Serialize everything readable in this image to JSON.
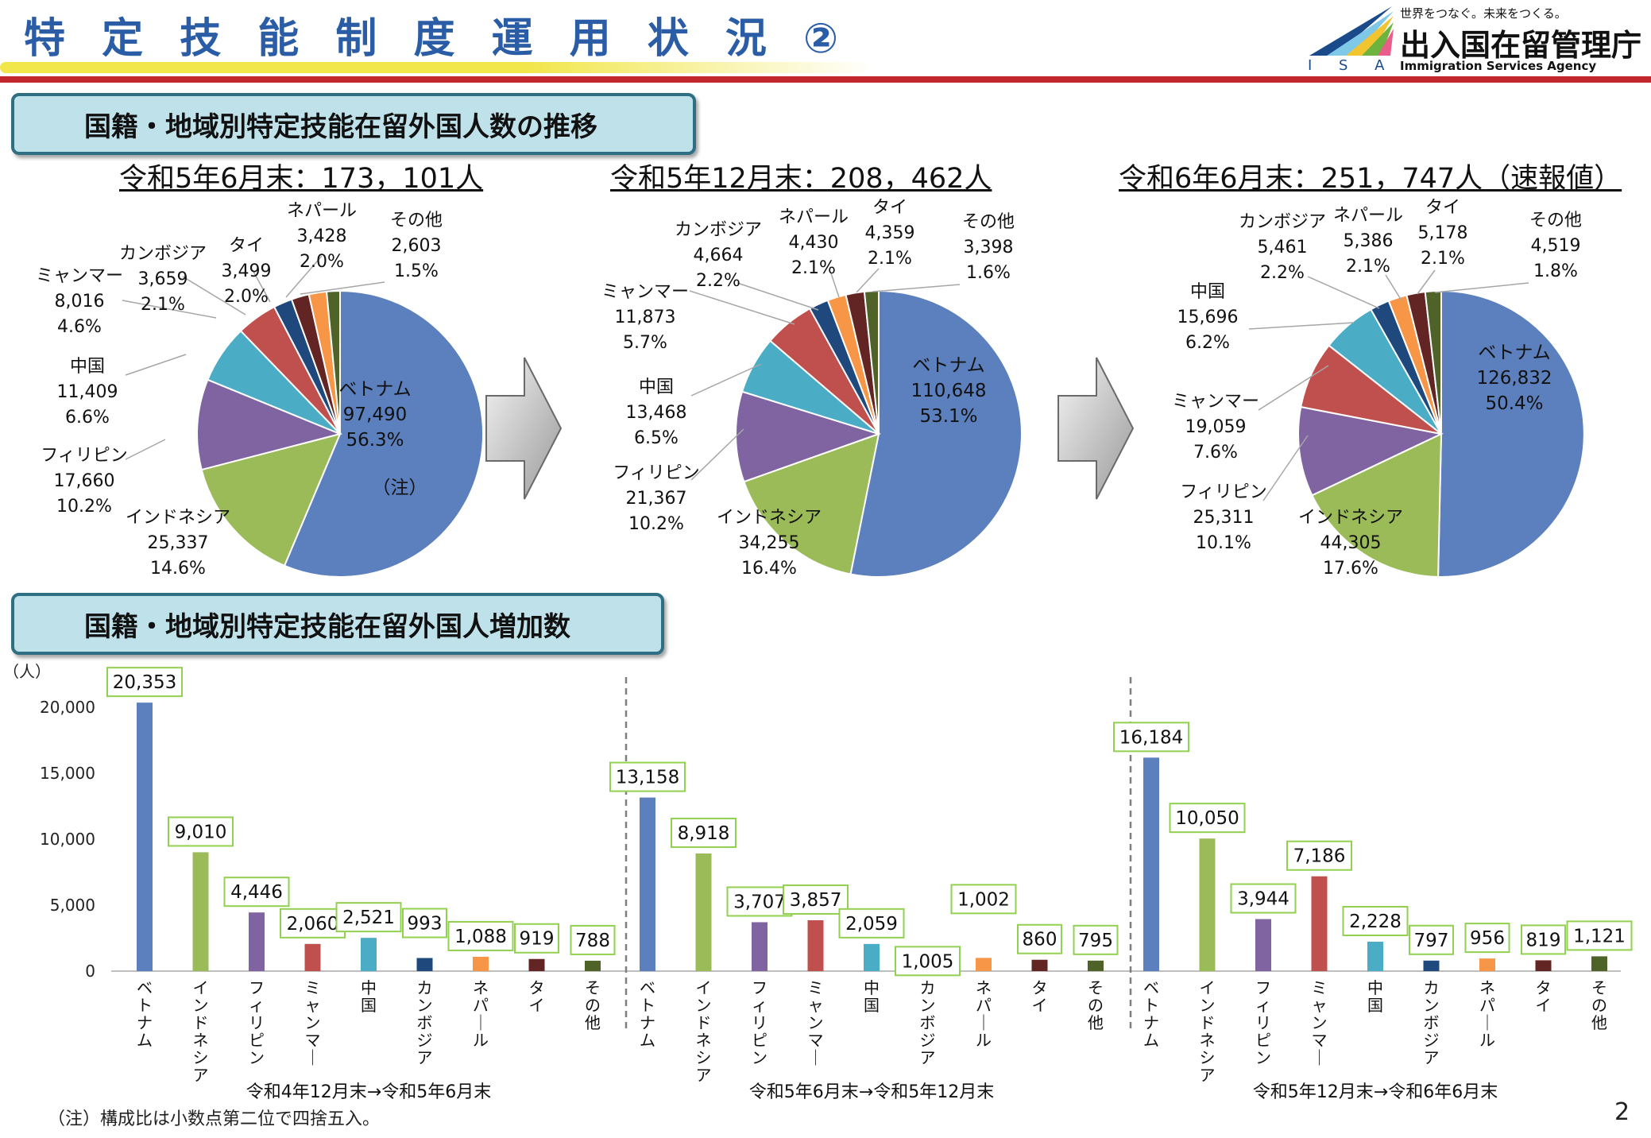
{
  "header": {
    "title": "特 定 技 能 制 度 運 用 状 況 ②",
    "logo": {
      "tagline": "世界をつなぐ。未来をつくる。",
      "agency": "出入国在留管理庁",
      "english": "Immigration Services Agency",
      "abbr": "I S A",
      "colors": [
        "#1a4a8a",
        "#7fc8e8",
        "#f2c530",
        "#6fb33f",
        "#e85d8a"
      ]
    }
  },
  "section1": {
    "title": "国籍・地域別特定技能在留外国人数の推移"
  },
  "section2": {
    "title": "国籍・地域別特定技能在留外国人増加数"
  },
  "pie_note": "（注）",
  "footnote": "（注）構成比は小数点第二位で四捨五入。",
  "page_number": "2",
  "colors": {
    "vietnam": "#5b80bd",
    "indonesia": "#9bbb59",
    "philippines": "#8064a2",
    "china": "#4bacc6",
    "myanmar": "#c0504d",
    "cambodia": "#1f497d",
    "nepal": "#f79646",
    "thailand": "#632523",
    "other": "#4f6228"
  },
  "chart_data": [
    {
      "type": "pie",
      "title": "令和5年6月末：173，101人",
      "slices": [
        {
          "key": "vietnam",
          "label": "ベトナム",
          "value": "97,490",
          "pct": "56.3%",
          "share": 56.3
        },
        {
          "key": "indonesia",
          "label": "インドネシア",
          "value": "25,337",
          "pct": "14.6%",
          "share": 14.6
        },
        {
          "key": "philippines",
          "label": "フィリピン",
          "value": "17,660",
          "pct": "10.2%",
          "share": 10.2
        },
        {
          "key": "china",
          "label": "中国",
          "value": "11,409",
          "pct": "6.6%",
          "share": 6.6
        },
        {
          "key": "myanmar",
          "label": "ミャンマー",
          "value": "8,016",
          "pct": "4.6%",
          "share": 4.6
        },
        {
          "key": "cambodia",
          "label": "カンボジア",
          "value": "3,659",
          "pct": "2.1%",
          "share": 2.1
        },
        {
          "key": "thailand",
          "label": "タイ",
          "value": "3,499",
          "pct": "2.0%",
          "share": 2.0
        },
        {
          "key": "nepal",
          "label": "ネパール",
          "value": "3,428",
          "pct": "2.0%",
          "share": 2.0
        },
        {
          "key": "other",
          "label": "その他",
          "value": "2,603",
          "pct": "1.5%",
          "share": 1.5
        }
      ]
    },
    {
      "type": "pie",
      "title": "令和5年12月末：208，462人",
      "slices": [
        {
          "key": "vietnam",
          "label": "ベトナム",
          "value": "110,648",
          "pct": "53.1%",
          "share": 53.1
        },
        {
          "key": "indonesia",
          "label": "インドネシア",
          "value": "34,255",
          "pct": "16.4%",
          "share": 16.4
        },
        {
          "key": "philippines",
          "label": "フィリピン",
          "value": "21,367",
          "pct": "10.2%",
          "share": 10.2
        },
        {
          "key": "china",
          "label": "中国",
          "value": "13,468",
          "pct": "6.5%",
          "share": 6.5
        },
        {
          "key": "myanmar",
          "label": "ミャンマー",
          "value": "11,873",
          "pct": "5.7%",
          "share": 5.7
        },
        {
          "key": "cambodia",
          "label": "カンボジア",
          "value": "4,664",
          "pct": "2.2%",
          "share": 2.2
        },
        {
          "key": "nepal",
          "label": "ネパール",
          "value": "4,430",
          "pct": "2.1%",
          "share": 2.1
        },
        {
          "key": "thailand",
          "label": "タイ",
          "value": "4,359",
          "pct": "2.1%",
          "share": 2.1
        },
        {
          "key": "other",
          "label": "その他",
          "value": "3,398",
          "pct": "1.6%",
          "share": 1.6
        }
      ]
    },
    {
      "type": "pie",
      "title": "令和6年6月末：251，747人（速報値）",
      "slices": [
        {
          "key": "vietnam",
          "label": "ベトナム",
          "value": "126,832",
          "pct": "50.4%",
          "share": 50.4
        },
        {
          "key": "indonesia",
          "label": "インドネシア",
          "value": "44,305",
          "pct": "17.6%",
          "share": 17.6
        },
        {
          "key": "philippines",
          "label": "フィリピン",
          "value": "25,311",
          "pct": "10.1%",
          "share": 10.1
        },
        {
          "key": "myanmar",
          "label": "ミャンマー",
          "value": "19,059",
          "pct": "7.6%",
          "share": 7.6
        },
        {
          "key": "china",
          "label": "中国",
          "value": "15,696",
          "pct": "6.2%",
          "share": 6.2
        },
        {
          "key": "cambodia",
          "label": "カンボジア",
          "value": "5,461",
          "pct": "2.2%",
          "share": 2.2
        },
        {
          "key": "nepal",
          "label": "ネパール",
          "value": "5,386",
          "pct": "2.1%",
          "share": 2.1
        },
        {
          "key": "thailand",
          "label": "タイ",
          "value": "5,178",
          "pct": "2.1%",
          "share": 2.1
        },
        {
          "key": "other",
          "label": "その他",
          "value": "4,519",
          "pct": "1.8%",
          "share": 1.8
        }
      ]
    },
    {
      "type": "bar",
      "ylabel": "（人）",
      "ylim": [
        0,
        20000
      ],
      "yticks": [
        "0",
        "5,000",
        "10,000",
        "15,000",
        "20,000"
      ],
      "ytick_values": [
        0,
        5000,
        10000,
        15000,
        20000
      ],
      "categories": [
        "ベトナム",
        "インドネシア",
        "フィリピン",
        "ミャンマー",
        "中国",
        "カンボジア",
        "ネパール",
        "タイ",
        "その他"
      ],
      "category_keys": [
        "vietnam",
        "indonesia",
        "philippines",
        "myanmar",
        "china",
        "cambodia",
        "nepal",
        "thailand",
        "other"
      ],
      "groups": [
        {
          "label": "令和4年12月末→令和5年6月末",
          "values": [
            20353,
            9010,
            4446,
            2060,
            2521,
            993,
            1088,
            919,
            788
          ],
          "value_labels": [
            "20,353",
            "9,010",
            "4,446",
            "2,060",
            "2,521",
            "993",
            "1,088",
            "919",
            "788"
          ]
        },
        {
          "label": "令和5年6月末→令和5年12月末",
          "values": [
            13158,
            8918,
            3707,
            3857,
            2059,
            1005,
            1002,
            860,
            795
          ],
          "value_labels": [
            "13,158",
            "8,918",
            "3,707",
            "3,857",
            "2,059",
            "1,005",
            "1,002",
            "860",
            "795"
          ]
        },
        {
          "label": "令和5年12月末→令和6年6月末",
          "values": [
            16184,
            10050,
            3944,
            7186,
            2228,
            797,
            956,
            819,
            1121
          ],
          "value_labels": [
            "16,184",
            "10,050",
            "3,944",
            "7,186",
            "2,228",
            "797",
            "956",
            "819",
            "1,121"
          ]
        }
      ]
    }
  ]
}
